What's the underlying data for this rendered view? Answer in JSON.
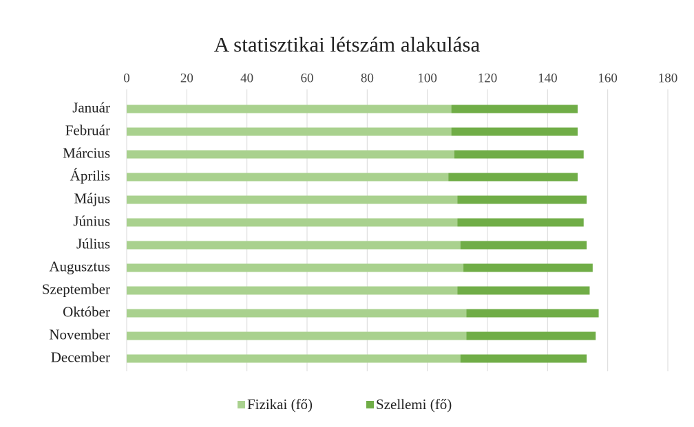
{
  "chart_data": {
    "type": "stacked-barh",
    "title": "A statisztikai létszám alakulása",
    "categories": [
      "Január",
      "Február",
      "Március",
      "Április",
      "Május",
      "Június",
      "Július",
      "Augusztus",
      "Szeptember",
      "Október",
      "November",
      "December"
    ],
    "series": [
      {
        "name": "Fizikai (fő)",
        "color": "#a9d18e",
        "values": [
          108,
          108,
          109,
          107,
          110,
          110,
          111,
          112,
          110,
          113,
          113,
          111
        ]
      },
      {
        "name": "Szellemi (fő)",
        "color": "#70ad47",
        "values": [
          42,
          42,
          43,
          43,
          43,
          42,
          42,
          43,
          44,
          44,
          43,
          42
        ]
      }
    ],
    "xlim": [
      0,
      180
    ],
    "xticks": [
      0,
      20,
      40,
      60,
      80,
      100,
      120,
      140,
      160,
      180
    ],
    "grid": true,
    "legend": "bottom"
  }
}
